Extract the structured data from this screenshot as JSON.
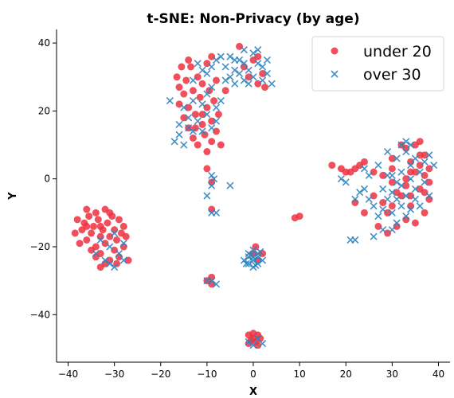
{
  "chart_data": {
    "type": "scatter",
    "title": "t-SNE: Non-Privacy (by age)",
    "xlabel": "X",
    "ylabel": "Y",
    "xlim": [
      -42.5,
      42.5
    ],
    "ylim": [
      -54,
      44
    ],
    "xticks": [
      -40,
      -30,
      -20,
      -10,
      0,
      10,
      20,
      30,
      40
    ],
    "yticks": [
      -40,
      -20,
      0,
      20,
      40
    ],
    "grid": false,
    "legend_position": "top-right",
    "series": [
      {
        "name": "under 20",
        "marker": "circle",
        "color": "#f03040",
        "points": [
          [
            -38,
            -12
          ],
          [
            -37,
            -15
          ],
          [
            -36.5,
            -13
          ],
          [
            -36,
            -18
          ],
          [
            -35.5,
            -11
          ],
          [
            -35,
            -16
          ],
          [
            -34.5,
            -14
          ],
          [
            -34,
            -10
          ],
          [
            -34,
            -20
          ],
          [
            -33.5,
            -12
          ],
          [
            -33,
            -17
          ],
          [
            -33,
            -22
          ],
          [
            -32.5,
            -15
          ],
          [
            -32,
            -9
          ],
          [
            -32,
            -19
          ],
          [
            -31.5,
            -13
          ],
          [
            -31,
            -24
          ],
          [
            -31,
            -17
          ],
          [
            -30.5,
            -11
          ],
          [
            -30,
            -21
          ],
          [
            -30,
            -15
          ],
          [
            -29.5,
            -18
          ],
          [
            -29,
            -12
          ],
          [
            -29,
            -23
          ],
          [
            -28.5,
            -16
          ],
          [
            -28,
            -14
          ],
          [
            -28,
            -20
          ],
          [
            -27.5,
            -17
          ],
          [
            -27,
            -24
          ],
          [
            -35,
            -21
          ],
          [
            -36,
            -9
          ],
          [
            -37.5,
            -19
          ],
          [
            -33,
            -26
          ],
          [
            -32,
            -25
          ],
          [
            -34,
            -23
          ],
          [
            -38.5,
            -16
          ],
          [
            -31,
            -10
          ],
          [
            -29.5,
            -25
          ],
          [
            -36,
            -14
          ],
          [
            -33,
            -14
          ],
          [
            -16.5,
            30
          ],
          [
            -16,
            27
          ],
          [
            -16,
            22
          ],
          [
            -15.5,
            33
          ],
          [
            -15,
            18
          ],
          [
            -15,
            25
          ],
          [
            -14.5,
            29
          ],
          [
            -14,
            15
          ],
          [
            -14,
            21
          ],
          [
            -13.5,
            33
          ],
          [
            -13,
            26
          ],
          [
            -13,
            12
          ],
          [
            -12.5,
            19
          ],
          [
            -12,
            30
          ],
          [
            -12,
            10
          ],
          [
            -11.5,
            24
          ],
          [
            -11,
            16
          ],
          [
            -11,
            28
          ],
          [
            -10.5,
            13
          ],
          [
            -10,
            21
          ],
          [
            -10,
            8
          ],
          [
            -9.5,
            26
          ],
          [
            -9,
            17
          ],
          [
            -9,
            11
          ],
          [
            -8.5,
            23
          ],
          [
            -8,
            14
          ],
          [
            -8,
            29
          ],
          [
            -7.5,
            19
          ],
          [
            -7,
            10
          ],
          [
            -14,
            35
          ],
          [
            -9,
            36
          ],
          [
            -10,
            34
          ],
          [
            -11,
            19
          ],
          [
            -12.5,
            15
          ],
          [
            -10,
            3
          ],
          [
            -9,
            -1
          ],
          [
            -9,
            -9
          ],
          [
            -9,
            -29
          ],
          [
            -9,
            -31
          ],
          [
            -10,
            -30
          ],
          [
            -3,
            39
          ],
          [
            -6,
            26
          ],
          [
            -2,
            33
          ],
          [
            -1,
            30
          ],
          [
            1,
            28
          ],
          [
            2,
            31
          ],
          [
            2.5,
            27
          ],
          [
            0,
            35
          ],
          [
            1,
            36
          ],
          [
            0.5,
            -20
          ],
          [
            0,
            -22
          ],
          [
            1,
            -24
          ],
          [
            0,
            -47
          ],
          [
            1,
            -46
          ],
          [
            -1,
            -46
          ],
          [
            0.5,
            -48
          ],
          [
            -0.5,
            -47.5
          ],
          [
            1.5,
            -47
          ],
          [
            -1,
            -48.5
          ],
          [
            0,
            -45.5
          ],
          [
            1,
            -49
          ],
          [
            2,
            -22
          ],
          [
            9,
            -11.5
          ],
          [
            10,
            -11
          ],
          [
            17,
            4
          ],
          [
            19,
            3
          ],
          [
            20,
            2
          ],
          [
            21,
            2
          ],
          [
            22,
            3
          ],
          [
            24,
            5
          ],
          [
            26,
            2
          ],
          [
            28,
            1
          ],
          [
            30,
            3
          ],
          [
            32,
            10
          ],
          [
            33,
            9
          ],
          [
            35,
            10
          ],
          [
            36,
            11
          ],
          [
            37,
            7
          ],
          [
            34,
            5
          ],
          [
            35,
            2
          ],
          [
            36,
            4
          ],
          [
            37,
            1
          ],
          [
            38,
            3
          ],
          [
            33,
            0
          ],
          [
            36,
            -3
          ],
          [
            38,
            -6
          ],
          [
            34,
            -8
          ],
          [
            37,
            -10
          ],
          [
            33,
            -12
          ],
          [
            35,
            -13
          ],
          [
            31,
            -14
          ],
          [
            29,
            -10
          ],
          [
            28,
            -7
          ],
          [
            32,
            -5
          ],
          [
            30,
            -1
          ],
          [
            34,
            -5
          ],
          [
            22,
            -7
          ],
          [
            24,
            -10
          ],
          [
            27,
            -14
          ],
          [
            29,
            -16
          ],
          [
            31,
            -4
          ],
          [
            36,
            7
          ],
          [
            37,
            -4
          ],
          [
            23,
            4
          ],
          [
            30,
            6
          ],
          [
            34,
            2
          ],
          [
            38,
            -1
          ],
          [
            26,
            -5
          ],
          [
            30,
            -8
          ],
          [
            33,
            -2
          ]
        ]
      },
      {
        "name": "over 30",
        "marker": "x",
        "color": "#2f84c0",
        "points": [
          [
            -34,
            -22
          ],
          [
            -32,
            -24
          ],
          [
            -31,
            -20
          ],
          [
            -30,
            -26
          ],
          [
            -29,
            -22
          ],
          [
            -28,
            -19
          ],
          [
            -33,
            -18
          ],
          [
            -30,
            -16
          ],
          [
            -31,
            -25
          ],
          [
            -28,
            -24
          ],
          [
            -18,
            23
          ],
          [
            -17,
            11
          ],
          [
            -16,
            16
          ],
          [
            -16,
            13
          ],
          [
            -15,
            21
          ],
          [
            -15,
            10
          ],
          [
            -14,
            18
          ],
          [
            -14,
            15
          ],
          [
            -13,
            23
          ],
          [
            -13,
            14
          ],
          [
            -12,
            17
          ],
          [
            -11,
            22
          ],
          [
            -11,
            14
          ],
          [
            -10,
            25
          ],
          [
            -10,
            19
          ],
          [
            -9,
            15
          ],
          [
            -9,
            27
          ],
          [
            -8,
            21
          ],
          [
            -8,
            17
          ],
          [
            -7,
            23
          ],
          [
            -7,
            36
          ],
          [
            -6,
            33
          ],
          [
            -5,
            30
          ],
          [
            -5,
            36
          ],
          [
            -4,
            28
          ],
          [
            -4,
            32
          ],
          [
            -3,
            35
          ],
          [
            -3,
            31
          ],
          [
            -2,
            34
          ],
          [
            -2,
            29
          ],
          [
            -1,
            32
          ],
          [
            -1,
            28
          ],
          [
            0,
            37
          ],
          [
            0,
            30
          ],
          [
            1,
            38
          ],
          [
            1,
            34
          ],
          [
            2,
            33
          ],
          [
            2,
            29
          ],
          [
            3,
            35
          ],
          [
            3,
            31
          ],
          [
            4,
            28
          ],
          [
            -6,
            29
          ],
          [
            -4,
            35
          ],
          [
            -2,
            38
          ],
          [
            -12,
            34
          ],
          [
            -11,
            32
          ],
          [
            -10,
            31
          ],
          [
            -9,
            33
          ],
          [
            -8,
            35
          ],
          [
            -13,
            29
          ],
          [
            -10,
            -5
          ],
          [
            -9,
            1
          ],
          [
            -9,
            -2
          ],
          [
            -8.5,
            0
          ],
          [
            -9,
            -10
          ],
          [
            -8,
            -10
          ],
          [
            -5,
            -2
          ],
          [
            -8,
            -31
          ],
          [
            -9,
            -30
          ],
          [
            -10,
            -30
          ],
          [
            -1,
            -22
          ],
          [
            0,
            -21
          ],
          [
            1,
            -22
          ],
          [
            -1,
            -25
          ],
          [
            0,
            -24
          ],
          [
            1,
            -25
          ],
          [
            -2,
            -24
          ],
          [
            2,
            -24
          ],
          [
            0,
            -23
          ],
          [
            -1,
            -23
          ],
          [
            1,
            -23
          ],
          [
            0,
            -26
          ],
          [
            -0.5,
            -22.5
          ],
          [
            0.5,
            -25.5
          ],
          [
            -1.5,
            -25
          ],
          [
            1.5,
            -21.5
          ],
          [
            0,
            -49
          ],
          [
            -1,
            -48
          ],
          [
            1,
            -47
          ],
          [
            2,
            -48.5
          ],
          [
            19,
            0
          ],
          [
            20,
            -1
          ],
          [
            22,
            -18
          ],
          [
            21,
            -18
          ],
          [
            22,
            -6
          ],
          [
            23,
            -4
          ],
          [
            24,
            -3
          ],
          [
            25,
            -6
          ],
          [
            26,
            -8
          ],
          [
            26,
            -17
          ],
          [
            27,
            -11
          ],
          [
            28,
            -3
          ],
          [
            28,
            -9
          ],
          [
            28,
            -15
          ],
          [
            29,
            1
          ],
          [
            29,
            8
          ],
          [
            30,
            -4
          ],
          [
            30,
            -10
          ],
          [
            31,
            6
          ],
          [
            31,
            -6
          ],
          [
            31,
            -13
          ],
          [
            32,
            2
          ],
          [
            32,
            -2
          ],
          [
            32,
            -8
          ],
          [
            33,
            8
          ],
          [
            33,
            -5
          ],
          [
            33,
            -11
          ],
          [
            34,
            0
          ],
          [
            34,
            4
          ],
          [
            34,
            -9
          ],
          [
            35,
            6
          ],
          [
            35,
            -3
          ],
          [
            35,
            -6
          ],
          [
            36,
            2
          ],
          [
            36,
            -8
          ],
          [
            37,
            5
          ],
          [
            37,
            -1
          ],
          [
            38,
            7
          ],
          [
            38,
            -5
          ],
          [
            39,
            4
          ],
          [
            24,
            3
          ],
          [
            25,
            1
          ],
          [
            27,
            4
          ],
          [
            29,
            -6
          ],
          [
            30,
            1
          ],
          [
            31,
            -1
          ],
          [
            32,
            10
          ],
          [
            33,
            11
          ],
          [
            34,
            10
          ],
          [
            30,
            -15
          ]
        ]
      }
    ]
  }
}
